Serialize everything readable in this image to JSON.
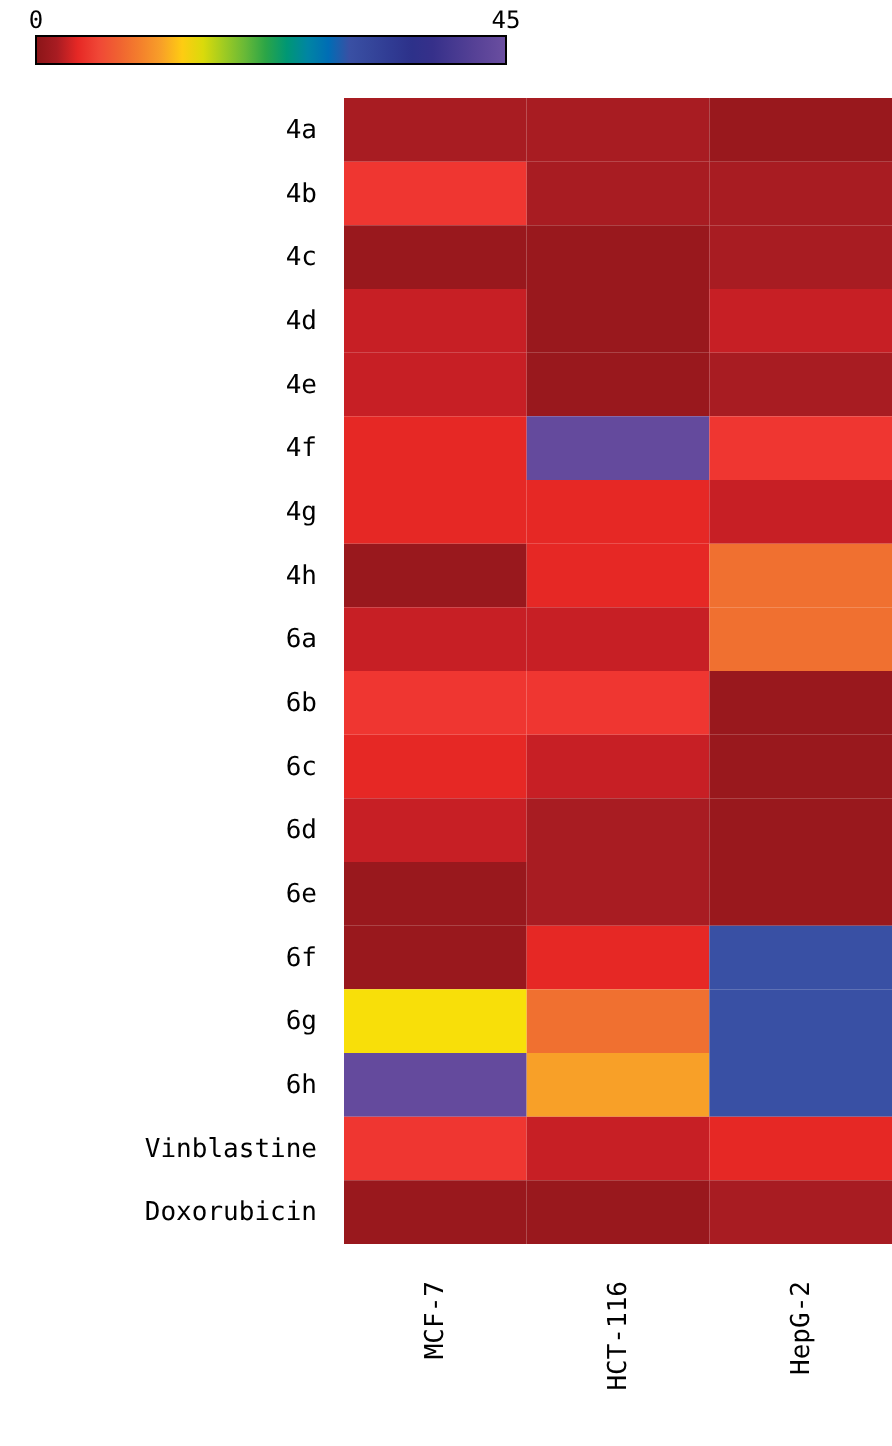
{
  "chart_data": {
    "type": "heatmap",
    "categories": [
      "MCF-7",
      "HCT-116",
      "HepG-2"
    ],
    "y_categories": [
      "4a",
      "4b",
      "4c",
      "4d",
      "4e",
      "4f",
      "4g",
      "4h",
      "6a",
      "6b",
      "6c",
      "6d",
      "6e",
      "6f",
      "6g",
      "6h",
      "Vinblastine",
      "Doxorubicin"
    ],
    "cells": [
      [
        2,
        2,
        1
      ],
      [
        5,
        2,
        2
      ],
      [
        1,
        1,
        2
      ],
      [
        3,
        1,
        3
      ],
      [
        3,
        1,
        2
      ],
      [
        4,
        44,
        5
      ],
      [
        4,
        4,
        3
      ],
      [
        1,
        4,
        9
      ],
      [
        3,
        3,
        9
      ],
      [
        5,
        5,
        1
      ],
      [
        4,
        3,
        1
      ],
      [
        3,
        2,
        1
      ],
      [
        1,
        2,
        1
      ],
      [
        1,
        4,
        30
      ],
      [
        15,
        9,
        30
      ],
      [
        44,
        12,
        30
      ],
      [
        5,
        3,
        4
      ],
      [
        1,
        1,
        2
      ]
    ],
    "clim": [
      0,
      45
    ],
    "cticks": [
      0,
      45
    ]
  }
}
